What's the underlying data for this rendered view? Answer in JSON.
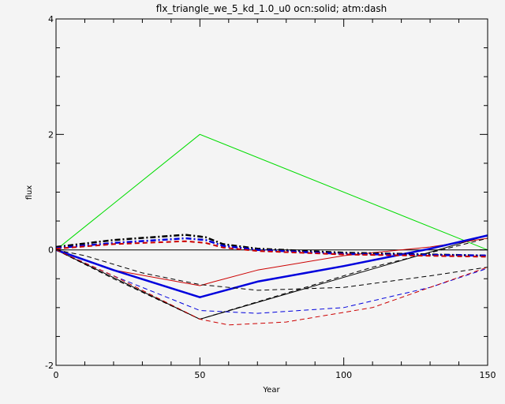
{
  "chart_data": {
    "type": "line",
    "title": "flx_triangle_we_5_kd_1.0_u0 ocn:solid; atm:dash",
    "xlabel": "Year",
    "ylabel": "flux",
    "xlim": [
      0,
      150
    ],
    "ylim": [
      -2,
      4
    ],
    "xticks": [
      0,
      50,
      100,
      150
    ],
    "yticks": [
      -2,
      0,
      2,
      4
    ],
    "xtick_labels": [
      "0",
      "50",
      "100",
      "150"
    ],
    "ytick_labels": [
      "-2",
      "0",
      "2",
      "4"
    ],
    "grid": false,
    "series": [
      {
        "color": "#00dd00",
        "style": "solid",
        "width": 1,
        "x": [
          0,
          50,
          150
        ],
        "y": [
          0,
          2,
          0
        ]
      },
      {
        "color": "#000000",
        "style": "solid",
        "width": 1,
        "x": [
          0,
          50,
          150
        ],
        "y": [
          0,
          -1.2,
          0.25
        ]
      },
      {
        "color": "#000000",
        "style": "solid",
        "width": 1,
        "x": [
          0,
          50,
          150
        ],
        "y": [
          0,
          0,
          0
        ]
      },
      {
        "color": "#cc0000",
        "style": "solid",
        "width": 1,
        "x": [
          0,
          20,
          50,
          55,
          70,
          100,
          130,
          150
        ],
        "y": [
          0,
          -0.35,
          -0.62,
          -0.55,
          -0.35,
          -0.1,
          0.05,
          0.2
        ]
      },
      {
        "color": "#0000dd",
        "style": "solid",
        "width": 2.5,
        "x": [
          0,
          20,
          50,
          70,
          100,
          130,
          150
        ],
        "y": [
          0,
          -0.35,
          -0.82,
          -0.55,
          -0.28,
          0.02,
          0.25
        ]
      },
      {
        "color": "#000000",
        "style": "dashed",
        "width": 1,
        "x": [
          0,
          10,
          30,
          50,
          70,
          100,
          130,
          150
        ],
        "y": [
          0,
          -0.1,
          -0.4,
          -0.6,
          -0.7,
          -0.65,
          -0.45,
          -0.3
        ]
      },
      {
        "color": "#000000",
        "style": "dashed",
        "width": 1,
        "x": [
          0,
          20,
          50,
          80,
          110,
          150
        ],
        "y": [
          0,
          -0.5,
          -1.2,
          -0.75,
          -0.3,
          0.2
        ]
      },
      {
        "color": "#0000dd",
        "style": "dashed",
        "width": 1,
        "x": [
          0,
          20,
          50,
          70,
          100,
          130,
          150
        ],
        "y": [
          0,
          -0.45,
          -1.05,
          -1.1,
          -1.0,
          -0.65,
          -0.32
        ]
      },
      {
        "color": "#cc0000",
        "style": "dashed",
        "width": 1,
        "x": [
          0,
          20,
          50,
          60,
          80,
          110,
          130,
          150
        ],
        "y": [
          0,
          -0.45,
          -1.2,
          -1.3,
          -1.25,
          -1.0,
          -0.65,
          -0.3
        ]
      },
      {
        "color": "#000000",
        "style": "dashdot",
        "width": 2.5,
        "x": [
          0,
          20,
          45,
          52,
          58,
          70,
          100,
          150
        ],
        "y": [
          0.05,
          0.17,
          0.26,
          0.22,
          0.1,
          0.02,
          -0.05,
          -0.1
        ]
      },
      {
        "color": "#0000dd",
        "style": "dashdot",
        "width": 2.5,
        "x": [
          0,
          20,
          45,
          52,
          58,
          70,
          100,
          150
        ],
        "y": [
          0.03,
          0.12,
          0.2,
          0.17,
          0.07,
          0.0,
          -0.07,
          -0.1
        ]
      },
      {
        "color": "#cc0000",
        "style": "dashed",
        "width": 2,
        "x": [
          0,
          20,
          45,
          52,
          58,
          70,
          100,
          150
        ],
        "y": [
          0.02,
          0.1,
          0.15,
          0.12,
          0.04,
          -0.02,
          -0.08,
          -0.12
        ]
      }
    ]
  }
}
